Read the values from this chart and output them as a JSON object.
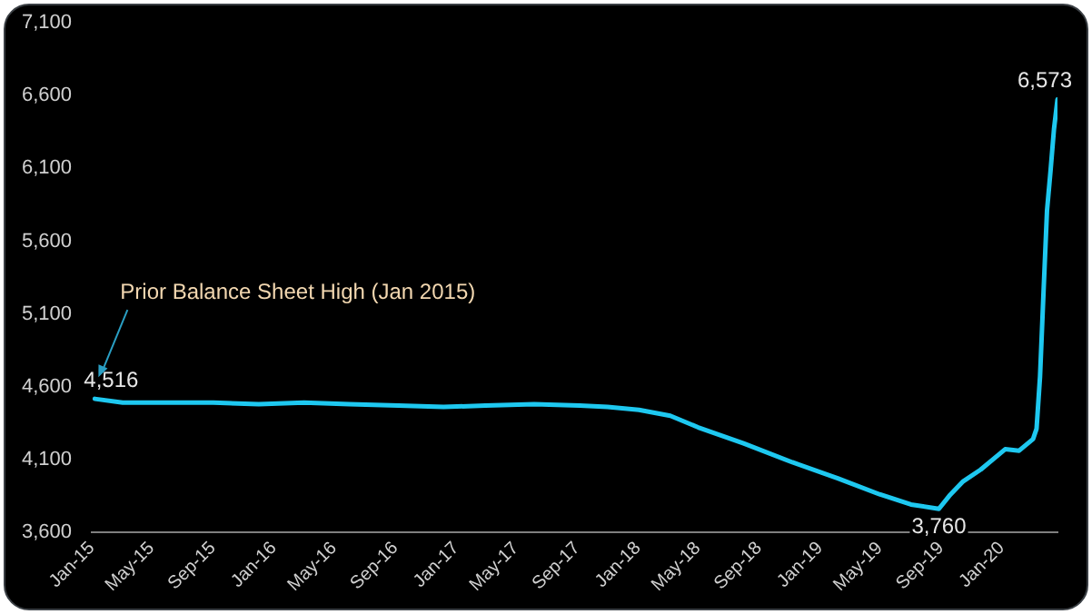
{
  "chart_data": {
    "type": "line",
    "x": [
      "2015-01-07",
      "2015-03-04",
      "2015-06-03",
      "2015-09-02",
      "2015-12-02",
      "2016-03-02",
      "2016-06-01",
      "2016-09-07",
      "2016-12-07",
      "2017-03-01",
      "2017-06-07",
      "2017-09-06",
      "2017-11-01",
      "2018-01-03",
      "2018-03-07",
      "2018-05-02",
      "2018-08-01",
      "2018-11-07",
      "2019-02-06",
      "2019-05-01",
      "2019-07-03",
      "2019-08-28",
      "2019-09-18",
      "2019-10-16",
      "2019-11-20",
      "2020-01-08",
      "2020-02-05",
      "2020-03-04",
      "2020-03-11",
      "2020-03-18",
      "2020-03-25",
      "2020-04-01",
      "2020-04-08",
      "2020-04-15",
      "2020-04-22"
    ],
    "series": [
      {
        "color": "#1ec8f0",
        "values": [
          4516,
          4490,
          4490,
          4490,
          4480,
          4490,
          4480,
          4470,
          4460,
          4470,
          4480,
          4470,
          4460,
          4440,
          4400,
          4320,
          4210,
          4080,
          3970,
          3860,
          3790,
          3760,
          3850,
          3950,
          4030,
          4170,
          4160,
          4240,
          4310,
          4670,
          5250,
          5810,
          6080,
          6370,
          6573
        ],
        "value_labels": [
          "4,516",
          null,
          null,
          null,
          null,
          null,
          null,
          null,
          null,
          null,
          null,
          null,
          null,
          null,
          null,
          null,
          null,
          null,
          null,
          null,
          null,
          "3,760",
          null,
          null,
          null,
          null,
          null,
          null,
          null,
          null,
          null,
          null,
          null,
          null,
          "6,573"
        ]
      }
    ],
    "xlim": [
      "2015-01-01",
      "2020-04-22"
    ],
    "xticks": [
      {
        "value": "2015-01",
        "label": "Jan-15"
      },
      {
        "value": "2015-05",
        "label": "May-15"
      },
      {
        "value": "2015-09",
        "label": "Sep-15"
      },
      {
        "value": "2016-01",
        "label": "Jan-16"
      },
      {
        "value": "2016-05",
        "label": "May-16"
      },
      {
        "value": "2016-09",
        "label": "Sep-16"
      },
      {
        "value": "2017-01",
        "label": "Jan-17"
      },
      {
        "value": "2017-05",
        "label": "May-17"
      },
      {
        "value": "2017-09",
        "label": "Sep-17"
      },
      {
        "value": "2018-01",
        "label": "Jan-18"
      },
      {
        "value": "2018-05",
        "label": "May-18"
      },
      {
        "value": "2018-09",
        "label": "Sep-18"
      },
      {
        "value": "2019-01",
        "label": "Jan-19"
      },
      {
        "value": "2019-05",
        "label": "May-19"
      },
      {
        "value": "2019-09",
        "label": "Sep-19"
      },
      {
        "value": "2020-01",
        "label": "Jan-20"
      }
    ],
    "ylim": [
      3600,
      7100
    ],
    "yticks": [
      {
        "value": 3600,
        "label": "3,600"
      },
      {
        "value": 4100,
        "label": "4,100"
      },
      {
        "value": 4600,
        "label": "4,600"
      },
      {
        "value": 5100,
        "label": "5,100"
      },
      {
        "value": 5600,
        "label": "5,600"
      },
      {
        "value": 6100,
        "label": "6,100"
      },
      {
        "value": 6600,
        "label": "6,600"
      },
      {
        "value": 7100,
        "label": "7,100"
      }
    ],
    "annotations": [
      "Prior Balance Sheet High (Jan 2015)"
    ],
    "grid": false,
    "legend": false,
    "marker": "none",
    "line_style": "solid"
  }
}
